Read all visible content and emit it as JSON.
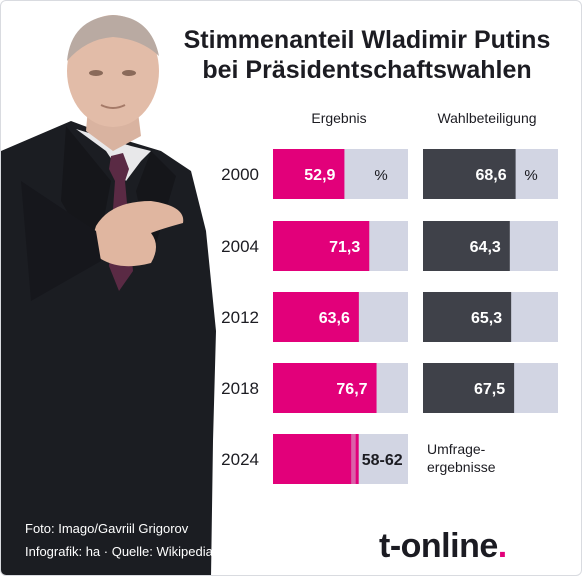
{
  "title_line1": "Stimmenanteil Wladimir Putins",
  "title_line2": "bei Präsidentschaftswahlen",
  "col_result": "Ergebnis",
  "col_turnout": "Wahlbeteiligung",
  "unit": "%",
  "credit_photo": "Foto: Imago/Gavriil Grigorov",
  "credit_info": "Infografik: ha  ·  Quelle: Wikipedia, FR, SWP",
  "logo_text": "t-online",
  "logo_dot": ".",
  "colors": {
    "result": "#e2007a",
    "turnout": "#3f4149",
    "track": "#d2d5e3",
    "text": "#1c1c22"
  },
  "chart_data": {
    "type": "bar",
    "categories": [
      "2000",
      "2004",
      "2012",
      "2018",
      "2024"
    ],
    "series": [
      {
        "name": "Ergebnis",
        "values": [
          52.9,
          71.3,
          63.6,
          76.7,
          null
        ],
        "labels": [
          "52,9",
          "71,3",
          "63,6",
          "76,7",
          "58-62"
        ]
      },
      {
        "name": "Wahlbeteiligung",
        "values": [
          68.6,
          64.3,
          65.3,
          67.5,
          null
        ],
        "labels": [
          "68,6",
          "64,3",
          "65,3",
          "67,5",
          ""
        ]
      }
    ],
    "poll_range_2024": [
      58,
      62
    ],
    "poll_note": [
      "Umfrage-",
      "ergebnisse"
    ],
    "xlim": [
      0,
      100
    ]
  }
}
